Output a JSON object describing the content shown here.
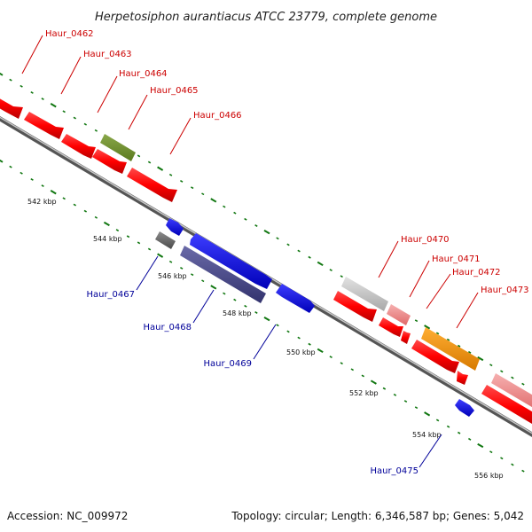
{
  "title": "Herpetosiphon aurantiacus ATCC 23779, complete genome",
  "footer": {
    "accession": "Accession: NC_009972",
    "summary": "Topology: circular; Length: 6,346,587 bp; Genes: 5,042"
  },
  "colors": {
    "forward_label": "#cc0000",
    "reverse_label": "#000099",
    "tick": "#117711",
    "backbone": "#999999"
  },
  "kbp_labels": [
    "542 kbp",
    "544 kbp",
    "546 kbp",
    "548 kbp",
    "550 kbp",
    "552 kbp",
    "554 kbp",
    "556 kbp"
  ],
  "forward_gene_labels": [
    "Haur_0462",
    "Haur_0463",
    "Haur_0464",
    "Haur_0465",
    "Haur_0466",
    "Haur_0470",
    "Haur_0471",
    "Haur_0472",
    "Haur_0473"
  ],
  "reverse_gene_labels": [
    "Haur_0467",
    "Haur_0468",
    "Haur_0469",
    "Haur_0475"
  ]
}
